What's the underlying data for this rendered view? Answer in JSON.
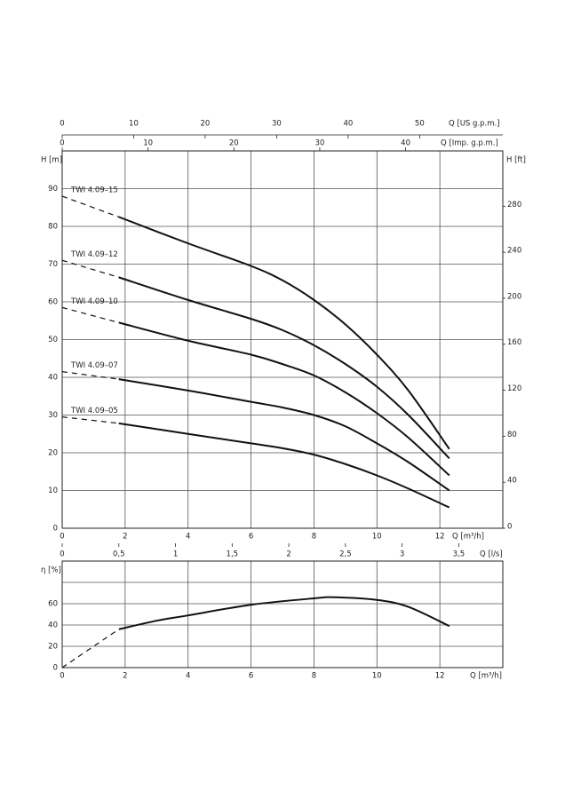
{
  "chart_data": [
    {
      "type": "line",
      "xlabel": "Q [m³/h]",
      "xlim": [
        0,
        14
      ],
      "xticks": [
        0,
        2,
        4,
        6,
        8,
        10,
        12
      ],
      "ylabel": "H [m]",
      "ylim": [
        0,
        100
      ],
      "yticks": [
        0,
        10,
        20,
        30,
        40,
        50,
        60,
        70,
        80,
        90
      ],
      "y2label": "H [ft]",
      "y2lim": [
        0,
        328.1
      ],
      "y2ticks": [
        0,
        40,
        80,
        120,
        160,
        200,
        240,
        280
      ],
      "x2label": "Q [US g.p.m.]",
      "x2lim": [
        0,
        61.64
      ],
      "x2ticks": [
        0,
        10,
        20,
        30,
        40,
        50
      ],
      "x3label": "Q [Imp. g.p.m.]",
      "x3lim": [
        0,
        51.32
      ],
      "x3ticks": [
        0,
        10,
        20,
        30,
        40
      ],
      "x4label": "Q [l/s]",
      "x4lim": [
        0,
        3.889
      ],
      "x4ticks": [
        0,
        {
          "value": 0.5,
          "label": "0,5"
        },
        1,
        {
          "value": 1.5,
          "label": "1,5"
        },
        2,
        {
          "value": 2.5,
          "label": "2,5"
        },
        3,
        {
          "value": 3.5,
          "label": "3,5"
        }
      ],
      "grid": true,
      "dashed_below_x": 1.8,
      "series": [
        {
          "name": "TWI 4.09–15",
          "color": "#111",
          "x": [
            0,
            1.8,
            4,
            6,
            7,
            8,
            9,
            10,
            11,
            12.3
          ],
          "values": [
            88,
            82.5,
            75.5,
            69.5,
            65.7,
            60.5,
            54,
            46,
            36.5,
            21
          ]
        },
        {
          "name": "TWI 4.09–12",
          "color": "#111",
          "x": [
            0,
            1.8,
            4,
            6,
            7,
            8,
            9,
            10,
            11,
            12.3
          ],
          "values": [
            71,
            66.5,
            60.5,
            55.5,
            52.5,
            48.5,
            43.5,
            37.5,
            30,
            18.5
          ]
        },
        {
          "name": "TWI 4.09–10",
          "color": "#111",
          "x": [
            0,
            1.8,
            4,
            6,
            7,
            8,
            9,
            10,
            11,
            12.3
          ],
          "values": [
            58.5,
            54.5,
            49.7,
            46,
            43.5,
            40.5,
            36,
            30.5,
            24,
            14
          ]
        },
        {
          "name": "TWI 4.09–07",
          "color": "#111",
          "x": [
            0,
            1.8,
            4,
            6,
            7,
            8,
            9,
            10,
            11,
            12.3
          ],
          "values": [
            41.5,
            39.5,
            36.5,
            33.5,
            32,
            30,
            27,
            22.5,
            17.5,
            10
          ]
        },
        {
          "name": "TWI 4.09–05",
          "color": "#111",
          "x": [
            0,
            1.8,
            4,
            6,
            7,
            8,
            9,
            10,
            11,
            12.3
          ],
          "values": [
            29.5,
            27.8,
            25,
            22.5,
            21.2,
            19.5,
            17,
            14,
            10.5,
            5.5
          ]
        }
      ]
    },
    {
      "type": "line",
      "xlabel": "Q [m³/h]",
      "xlim": [
        0,
        14
      ],
      "xticks": [
        0,
        2,
        4,
        6,
        8,
        10,
        12
      ],
      "ylabel": "η [%]",
      "ylim": [
        0,
        100
      ],
      "yticks": [
        0,
        20,
        40,
        60,
        {
          "value": 80,
          "label": null
        }
      ],
      "grid": true,
      "dashed_below_x": 1.8,
      "series": [
        {
          "color": "#111",
          "x": [
            0,
            1.8,
            3,
            4,
            6,
            8,
            8.7,
            10,
            11,
            12.3
          ],
          "values": [
            0,
            36,
            44,
            49,
            59,
            65,
            66,
            63.5,
            57,
            39
          ]
        }
      ]
    }
  ]
}
